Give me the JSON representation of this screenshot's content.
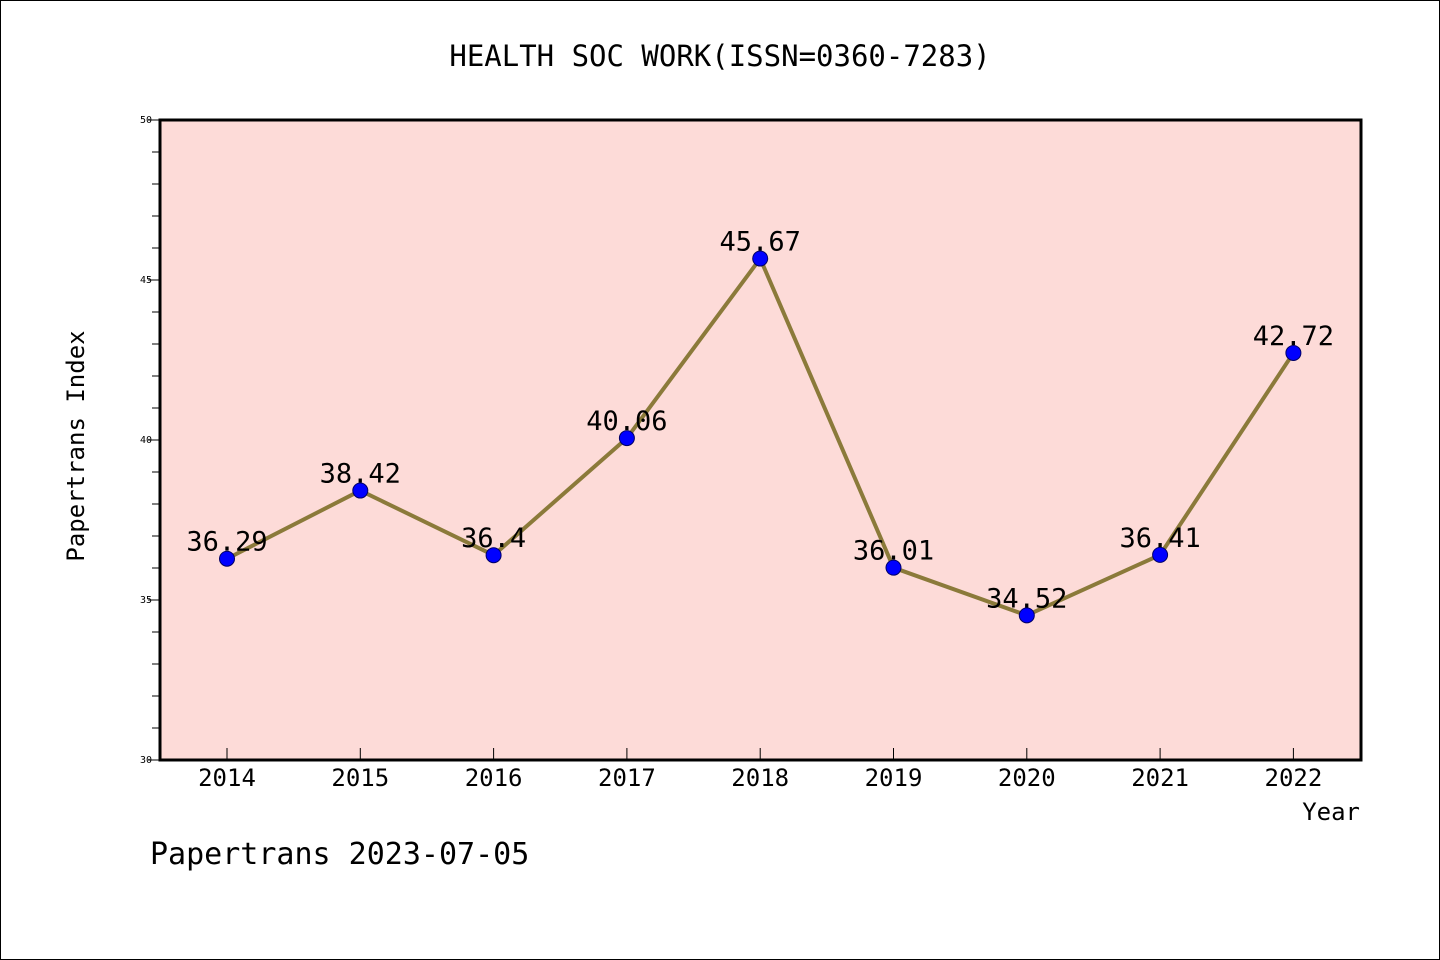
{
  "chart_data": {
    "type": "line",
    "title": "HEALTH SOC WORK(ISSN=0360-7283)",
    "xlabel": "Year",
    "ylabel": "Papertrans Index",
    "categories": [
      "2014",
      "2015",
      "2016",
      "2017",
      "2018",
      "2019",
      "2020",
      "2021",
      "2022"
    ],
    "series": [
      {
        "values": [
          36.29,
          38.42,
          36.4,
          40.06,
          45.67,
          36.01,
          34.52,
          36.41,
          42.72
        ],
        "labels": [
          "36.29",
          "38.42",
          "36.4",
          "40.06",
          "45.67",
          "36.01",
          "34.52",
          "36.41",
          "42.72"
        ],
        "line_color": "#8b7a3a",
        "marker_color": "#0000ff"
      }
    ],
    "ylim": [
      30,
      50
    ],
    "yticks": [
      "30",
      "35",
      "40",
      "45",
      "50"
    ],
    "plot_background": "#fddbd8",
    "grid": false
  },
  "footer": "Papertrans 2023-07-05"
}
